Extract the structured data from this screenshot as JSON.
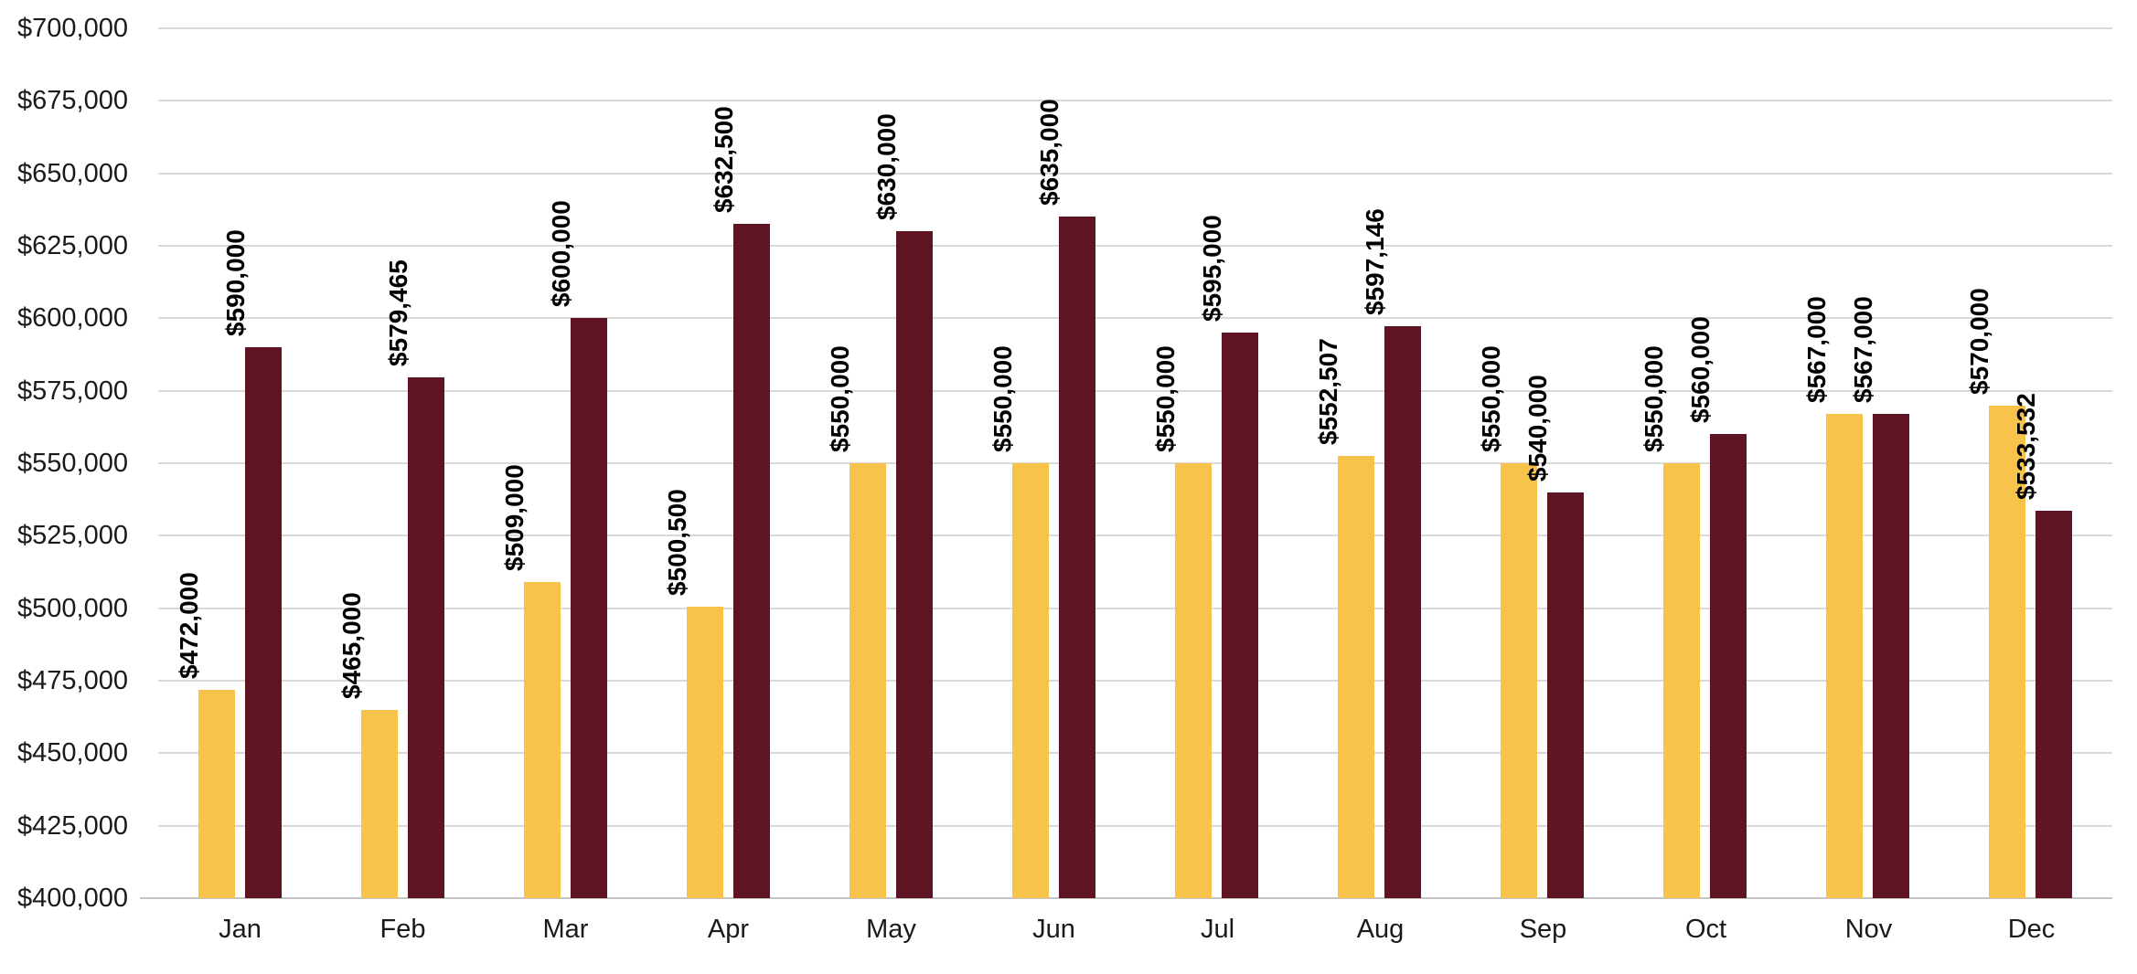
{
  "chart_data": {
    "type": "bar",
    "title": "",
    "xlabel": "",
    "ylabel": "",
    "grid": true,
    "legend_position": "none",
    "ylim": [
      400000,
      700000
    ],
    "ytick_step": 25000,
    "ytick_labels": [
      "$400,000",
      "$425,000",
      "$450,000",
      "$475,000",
      "$500,000",
      "$525,000",
      "$550,000",
      "$575,000",
      "$600,000",
      "$625,000",
      "$650,000",
      "$675,000",
      "$700,000"
    ],
    "categories": [
      "Jan",
      "Feb",
      "Mar",
      "Apr",
      "May",
      "Jun",
      "Jul",
      "Aug",
      "Sep",
      "Oct",
      "Nov",
      "Dec"
    ],
    "data_label_rotation": 90,
    "series": [
      {
        "name": "Gold",
        "color": "#f7c34b",
        "values": [
          472000,
          465000,
          509000,
          500500,
          550000,
          550000,
          550000,
          552507,
          550000,
          550000,
          567000,
          570000
        ],
        "labels": [
          "$472,000",
          "$465,000",
          "$509,000",
          "$500,500",
          "$550,000",
          "$550,000",
          "$550,000",
          "$552,507",
          "$550,000",
          "$550,000",
          "$567,000",
          "$570,000"
        ]
      },
      {
        "name": "Dark Red",
        "color": "#5e1422",
        "values": [
          590000,
          579465,
          600000,
          632500,
          630000,
          635000,
          595000,
          597146,
          540000,
          560000,
          567000,
          533532
        ],
        "labels": [
          "$590,000",
          "$579,465",
          "$600,000",
          "$632,500",
          "$630,000",
          "$635,000",
          "$595,000",
          "$597,146",
          "$540,000",
          "$560,000",
          "$567,000",
          "$533,532"
        ]
      }
    ]
  },
  "colors": {
    "background": "#ffffff",
    "gridline": "#d9d9d9",
    "axis_line": "#c3c3c3",
    "tick_text": "#1a1a1a",
    "data_label_text": "#000000"
  }
}
